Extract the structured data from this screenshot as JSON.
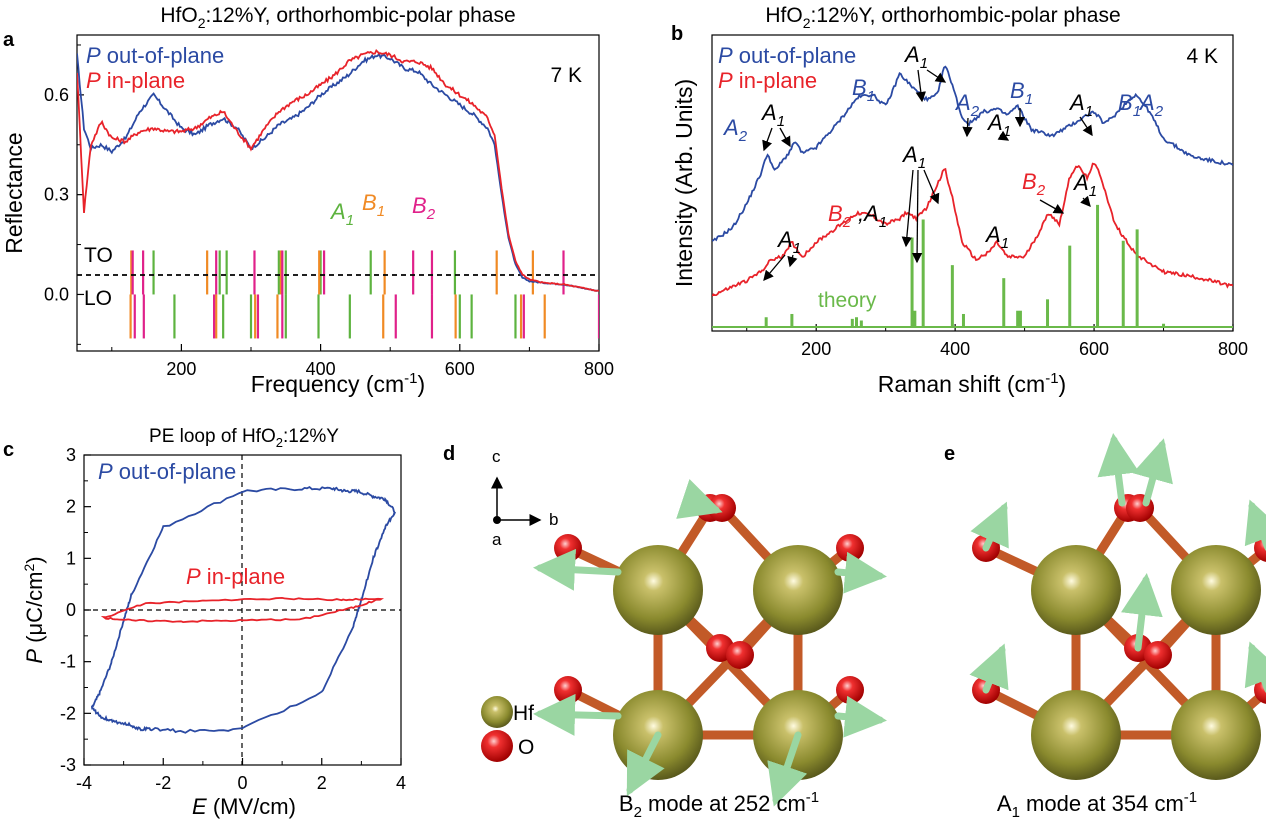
{
  "panels": {
    "a": {
      "letter": "a",
      "title_main": "HfO",
      "title_sub": "2",
      "title_rest": ":12%Y, orthorhombic-polar phase",
      "temperature": "7 K",
      "legend": [
        {
          "prefix": "P",
          "text": " out-of-plane",
          "color": "#2b4aa3"
        },
        {
          "prefix": "P",
          "text": " in-plane",
          "color": "#e8232a"
        }
      ],
      "xlabel_main": "Frequency (cm",
      "xlabel_sup": "-1",
      "xlabel_end": ")",
      "ylabel": "Reflectance",
      "to_label": "TO",
      "lo_label": "LO",
      "mode_legend": [
        {
          "main": "A",
          "sub": "1",
          "color": "#5db33f"
        },
        {
          "main": "B",
          "sub": "1",
          "color": "#f08a24"
        },
        {
          "main": "B",
          "sub": "2",
          "color": "#e0218a"
        }
      ]
    },
    "b": {
      "letter": "b",
      "title_main": "HfO",
      "title_sub": "2",
      "title_rest": ":12%Y, orthorhombic-polar phase",
      "temperature": "4 K",
      "legend": [
        {
          "prefix": "P",
          "text": " out-of-plane",
          "color": "#2b4aa3"
        },
        {
          "prefix": "P",
          "text": " in-plane",
          "color": "#e8232a"
        }
      ],
      "xlabel_main": "Raman shift (cm",
      "xlabel_sup": "-1",
      "xlabel_end": ")",
      "ylabel": "Intensity (Arb. Units)",
      "theory_label": "theory"
    },
    "c": {
      "letter": "c",
      "title_main": "PE loop of HfO",
      "title_sub": "2",
      "title_rest": ":12%Y",
      "xlabel_italic": "E",
      "xlabel_rest": " (MV/cm)",
      "ylabel_italic": "P",
      "ylabel_rest": " (μC/cm",
      "ylabel_sup": "2",
      "ylabel_end": ")",
      "label_out": {
        "prefix": "P",
        "text": " out-of-plane"
      },
      "label_in": {
        "prefix": "P",
        "text": " in-plane"
      }
    },
    "d": {
      "letter": "d",
      "axis_c": "c",
      "axis_b": "b",
      "axis_a": "a",
      "legend_hf": "Hf",
      "legend_o": "O",
      "caption_main": "B",
      "caption_sub": "2",
      "caption_rest": " mode at 252 cm",
      "caption_sup": "-1"
    },
    "e": {
      "letter": "e",
      "caption_main": "A",
      "caption_sub": "1",
      "caption_rest": " mode at 354 cm",
      "caption_sup": "-1"
    }
  },
  "chart_data": [
    {
      "panel": "a",
      "type": "line",
      "x_range": [
        50,
        800
      ],
      "y_range": [
        -0.17,
        0.78
      ],
      "xticks": [
        200,
        400,
        600,
        800
      ],
      "yticks": [
        0.0,
        0.3,
        0.6
      ],
      "xtick_labels": [
        "200",
        "400",
        "600",
        "800"
      ],
      "ytick_labels": [
        "0.0",
        "0.3",
        "0.6"
      ],
      "series": [
        {
          "name": "P out-of-plane",
          "color": "#2b4aa3",
          "x": [
            50,
            60,
            70,
            85,
            100,
            120,
            140,
            160,
            180,
            200,
            220,
            240,
            260,
            280,
            300,
            320,
            340,
            360,
            380,
            400,
            420,
            440,
            460,
            480,
            500,
            520,
            540,
            560,
            580,
            600,
            620,
            640,
            650,
            660,
            670,
            680,
            690,
            700,
            720,
            750,
            800
          ],
          "y": [
            0.72,
            0.5,
            0.44,
            0.45,
            0.43,
            0.47,
            0.55,
            0.6,
            0.55,
            0.5,
            0.48,
            0.51,
            0.53,
            0.5,
            0.44,
            0.47,
            0.51,
            0.53,
            0.56,
            0.6,
            0.63,
            0.66,
            0.7,
            0.72,
            0.71,
            0.68,
            0.67,
            0.63,
            0.6,
            0.57,
            0.54,
            0.5,
            0.45,
            0.3,
            0.17,
            0.09,
            0.05,
            0.04,
            0.035,
            0.03,
            0.01
          ]
        },
        {
          "name": "P in-plane",
          "color": "#e8232a",
          "x": [
            50,
            60,
            70,
            85,
            100,
            120,
            140,
            160,
            180,
            200,
            220,
            240,
            260,
            280,
            300,
            320,
            340,
            360,
            380,
            400,
            420,
            440,
            460,
            480,
            500,
            520,
            540,
            560,
            580,
            600,
            620,
            640,
            650,
            660,
            670,
            680,
            690,
            700,
            720,
            750,
            800
          ],
          "y": [
            0.67,
            0.25,
            0.45,
            0.52,
            0.47,
            0.46,
            0.49,
            0.5,
            0.49,
            0.49,
            0.5,
            0.53,
            0.55,
            0.49,
            0.44,
            0.5,
            0.55,
            0.58,
            0.6,
            0.63,
            0.66,
            0.7,
            0.72,
            0.73,
            0.72,
            0.7,
            0.7,
            0.68,
            0.63,
            0.6,
            0.57,
            0.53,
            0.48,
            0.32,
            0.18,
            0.1,
            0.06,
            0.045,
            0.035,
            0.03,
            0.01
          ]
        }
      ],
      "phonon_lines": {
        "TO": {
          "A1": [
            160,
            255,
            265,
            340,
            350,
            400,
            472,
            593
          ],
          "B1": [
            128,
            237,
            343,
            398,
            492,
            653,
            705
          ],
          "B2": [
            130,
            145,
            250,
            305,
            345,
            405,
            533,
            560,
            749
          ]
        },
        "LO": {
          "A1": [
            190,
            260,
            300,
            350,
            397,
            442,
            600,
            617,
            680
          ],
          "B1": [
            127,
            250,
            306,
            338,
            490,
            594,
            688,
            722
          ],
          "B2": [
            133,
            146,
            247,
            310,
            345,
            508,
            560,
            692,
            800
          ]
        }
      }
    },
    {
      "panel": "b",
      "type": "line",
      "x_range": [
        50,
        800
      ],
      "xticks": [
        200,
        400,
        600,
        800
      ],
      "xtick_labels": [
        "200",
        "400",
        "600",
        "800"
      ],
      "series": [
        {
          "name": "P out-of-plane",
          "color": "#2b4aa3",
          "x": [
            50,
            80,
            100,
            120,
            130,
            140,
            150,
            160,
            170,
            180,
            200,
            230,
            260,
            280,
            300,
            310,
            320,
            340,
            360,
            375,
            385,
            395,
            410,
            420,
            440,
            460,
            475,
            490,
            510,
            540,
            570,
            590,
            600,
            615,
            630,
            650,
            660,
            680,
            700,
            740,
            800
          ],
          "y": [
            0.3,
            0.35,
            0.43,
            0.53,
            0.6,
            0.54,
            0.57,
            0.6,
            0.64,
            0.6,
            0.62,
            0.7,
            0.79,
            0.8,
            0.76,
            0.81,
            0.87,
            0.82,
            0.78,
            0.8,
            0.9,
            0.84,
            0.72,
            0.7,
            0.74,
            0.75,
            0.73,
            0.76,
            0.68,
            0.66,
            0.7,
            0.73,
            0.74,
            0.7,
            0.73,
            0.78,
            0.8,
            0.74,
            0.65,
            0.59,
            0.56
          ]
        },
        {
          "name": "P in-plane",
          "color": "#e8232a",
          "x": [
            50,
            80,
            100,
            120,
            135,
            150,
            165,
            180,
            200,
            230,
            260,
            280,
            300,
            320,
            330,
            345,
            360,
            375,
            385,
            395,
            410,
            430,
            450,
            460,
            475,
            500,
            520,
            535,
            550,
            565,
            575,
            590,
            600,
            610,
            630,
            660,
            700,
            750,
            800
          ],
          "y": [
            0.12,
            0.15,
            0.17,
            0.2,
            0.24,
            0.25,
            0.3,
            0.25,
            0.3,
            0.35,
            0.4,
            0.39,
            0.36,
            0.38,
            0.4,
            0.38,
            0.42,
            0.5,
            0.55,
            0.46,
            0.3,
            0.24,
            0.27,
            0.3,
            0.25,
            0.25,
            0.33,
            0.4,
            0.36,
            0.52,
            0.56,
            0.52,
            0.57,
            0.52,
            0.36,
            0.26,
            0.2,
            0.18,
            0.15
          ]
        },
        {
          "name": "theory",
          "color": "#6ab94a",
          "peaks_x": [
            128,
            165,
            252,
            258,
            265,
            338,
            342,
            354,
            396,
            412,
            470,
            490,
            494,
            533,
            565,
            605,
            642,
            662,
            700
          ],
          "peaks_h": [
            0.06,
            0.08,
            0.05,
            0.06,
            0.04,
            0.55,
            0.1,
            0.66,
            0.38,
            0.08,
            0.3,
            0.1,
            0.1,
            0.17,
            0.5,
            0.75,
            0.53,
            0.6,
            0.02
          ]
        }
      ]
    },
    {
      "panel": "c",
      "type": "line",
      "x_range": [
        -4,
        4
      ],
      "y_range": [
        -3,
        3
      ],
      "xticks": [
        -4,
        -2,
        0,
        2,
        4
      ],
      "yticks": [
        -3,
        -2,
        -1,
        0,
        1,
        2,
        3
      ],
      "xtick_labels": [
        "-4",
        "-2",
        "0",
        "2",
        "4"
      ],
      "ytick_labels": [
        "-3",
        "-2",
        "-1",
        "0",
        "1",
        "2",
        "3"
      ],
      "series": [
        {
          "name": "P out-of-plane",
          "color": "#2b4aa3",
          "x": [
            3.85,
            3.6,
            3.3,
            3.0,
            2.8,
            2.0,
            0.0,
            -1.5,
            -2.3,
            -2.6,
            -2.9,
            -3.3,
            -3.6,
            -3.8,
            -3.6,
            -3.3,
            -3.0,
            -2.8,
            -2.0,
            0.0,
            1.5,
            2.3,
            2.6,
            2.9,
            3.3,
            3.6,
            3.85
          ],
          "y": [
            1.9,
            1.6,
            1.0,
            0.2,
            -0.3,
            -1.6,
            -2.3,
            -2.35,
            -2.3,
            -2.3,
            -2.2,
            -2.15,
            -2.05,
            -1.9,
            -1.6,
            -1.0,
            -0.2,
            0.3,
            1.6,
            2.3,
            2.35,
            2.35,
            2.3,
            2.3,
            2.2,
            2.15,
            1.9
          ]
        },
        {
          "name": "P in-plane",
          "color": "#e8232a",
          "x": [
            3.5,
            2.5,
            1.0,
            -1.0,
            -2.5,
            -3.5,
            -2.8,
            -1.5,
            0.0,
            1.5,
            2.8,
            3.5
          ],
          "y": [
            0.22,
            0.2,
            0.22,
            0.18,
            0.12,
            -0.15,
            -0.2,
            -0.22,
            -0.2,
            -0.18,
            0.05,
            0.22
          ]
        }
      ]
    }
  ]
}
